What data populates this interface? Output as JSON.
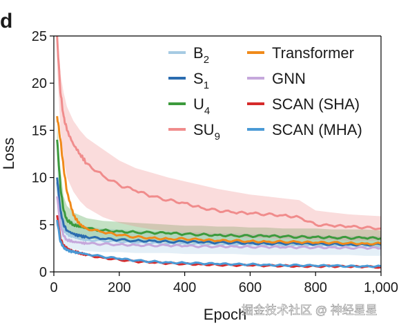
{
  "panel_label": "d",
  "watermark": "掘金技术社区 @ 神经星星",
  "chart_data": {
    "type": "line",
    "xlabel": "Epoch",
    "ylabel": "Loss",
    "xlim": [
      0,
      1000
    ],
    "ylim": [
      0,
      25
    ],
    "xticks": [
      0,
      200,
      400,
      600,
      800,
      1000
    ],
    "xtick_labels": [
      "0",
      "200",
      "400",
      "600",
      "800",
      "1,000"
    ],
    "yticks": [
      0,
      5,
      10,
      15,
      20,
      25
    ],
    "ytick_labels": [
      "0",
      "5",
      "10",
      "15",
      "20",
      "25"
    ],
    "grid": false,
    "legend_position": "top-right",
    "x": [
      10,
      20,
      30,
      40,
      60,
      80,
      100,
      150,
      200,
      250,
      300,
      350,
      400,
      450,
      500,
      550,
      600,
      650,
      700,
      750,
      800,
      850,
      900,
      950,
      1000
    ],
    "series": [
      {
        "name": "B",
        "sub": "2",
        "color": "#a6cbe3",
        "values": [
          9.5,
          6.0,
          4.5,
          4.0,
          3.7,
          3.5,
          3.4,
          3.3,
          3.2,
          3.1,
          3.05,
          3.0,
          3.0,
          2.95,
          2.9,
          2.9,
          2.85,
          2.85,
          2.8,
          2.8,
          2.8,
          2.75,
          2.75,
          2.7,
          2.7
        ],
        "upper": [
          11.5,
          8.0,
          6.5,
          5.8,
          5.3,
          5.0,
          4.8,
          4.6,
          4.5,
          4.4,
          4.3,
          4.3,
          4.2,
          4.2,
          4.1,
          4.1,
          4.0,
          4.0,
          3.9,
          3.9,
          3.9,
          3.8,
          3.8,
          3.8,
          3.8
        ],
        "lower": [
          7.5,
          4.0,
          3.0,
          2.6,
          2.4,
          2.3,
          2.2,
          2.1,
          2.1,
          2.0,
          2.0,
          2.0,
          1.9,
          1.9,
          1.9,
          1.9,
          1.8,
          1.8,
          1.8,
          1.8,
          1.8,
          1.8,
          1.8,
          1.7,
          1.7
        ]
      },
      {
        "name": "S",
        "sub": "1",
        "color": "#2b6cb0",
        "values": [
          10.0,
          6.5,
          5.0,
          4.4,
          4.0,
          3.8,
          3.7,
          3.5,
          3.4,
          3.3,
          3.3,
          3.2,
          3.2,
          3.15,
          3.1,
          3.1,
          3.05,
          3.0,
          3.0,
          3.0,
          2.95,
          2.95,
          2.9,
          2.9,
          2.9
        ],
        "upper": null,
        "lower": null
      },
      {
        "name": "U",
        "sub": "4",
        "color": "#3c9a3c",
        "values": [
          14.0,
          9.0,
          6.5,
          5.5,
          5.0,
          4.8,
          4.6,
          4.4,
          4.3,
          4.2,
          4.15,
          4.1,
          4.0,
          3.95,
          3.9,
          3.85,
          3.8,
          3.8,
          3.75,
          3.7,
          3.7,
          3.65,
          3.6,
          3.6,
          3.55
        ],
        "upper": [
          15.5,
          11.0,
          8.0,
          7.0,
          6.3,
          6.0,
          5.7,
          5.4,
          5.3,
          5.2,
          5.1,
          5.0,
          4.9,
          4.9,
          4.8,
          4.8,
          4.7,
          4.7,
          4.6,
          4.6,
          4.6,
          4.5,
          4.5,
          4.5,
          4.4
        ],
        "lower": [
          12.5,
          7.0,
          5.0,
          4.2,
          3.8,
          3.6,
          3.5,
          3.4,
          3.3,
          3.2,
          3.2,
          3.1,
          3.1,
          3.0,
          3.0,
          3.0,
          2.9,
          2.9,
          2.9,
          2.8,
          2.8,
          2.8,
          2.8,
          2.8,
          2.7
        ]
      },
      {
        "name": "SU",
        "sub": "9",
        "color": "#f08c8c",
        "values": [
          25.0,
          19.0,
          16.5,
          15.0,
          13.5,
          12.5,
          11.5,
          10.2,
          9.2,
          8.6,
          8.0,
          7.6,
          7.3,
          6.8,
          6.5,
          6.3,
          6.2,
          6.1,
          6.0,
          5.8,
          5.0,
          4.9,
          4.8,
          4.7,
          4.6
        ],
        "upper": [
          26.0,
          21.0,
          19.0,
          17.5,
          16.0,
          15.0,
          14.2,
          13.0,
          11.8,
          11.0,
          10.5,
          10.0,
          9.6,
          9.2,
          8.8,
          8.5,
          8.2,
          8.0,
          7.8,
          7.6,
          6.5,
          6.3,
          6.1,
          6.0,
          5.9
        ],
        "lower": [
          22.0,
          15.0,
          12.0,
          10.0,
          8.5,
          7.5,
          6.8,
          5.8,
          5.2,
          4.8,
          4.5,
          4.3,
          4.1,
          3.9,
          3.8,
          3.7,
          3.6,
          3.6,
          3.5,
          3.5,
          3.4,
          3.4,
          3.3,
          3.3,
          3.3
        ]
      },
      {
        "name": "Transformer",
        "sub": "",
        "color": "#f08a1a",
        "values": [
          16.5,
          14.0,
          11.0,
          8.5,
          6.0,
          5.0,
          4.6,
          4.2,
          3.9,
          3.7,
          3.6,
          3.5,
          3.5,
          3.4,
          3.3,
          3.3,
          3.25,
          3.2,
          3.2,
          3.15,
          3.1,
          3.1,
          3.05,
          3.0,
          3.0
        ],
        "upper": null,
        "lower": null
      },
      {
        "name": "GNN",
        "sub": "",
        "color": "#c6a8dc",
        "values": [
          8.0,
          5.0,
          3.8,
          3.4,
          3.2,
          3.1,
          3.0,
          2.95,
          2.9,
          2.85,
          2.8,
          2.8,
          2.75,
          2.7,
          2.7,
          2.7,
          2.65,
          2.65,
          2.6,
          2.6,
          2.6,
          2.6,
          2.55,
          2.55,
          2.5
        ],
        "upper": null,
        "lower": null
      },
      {
        "name": "SCAN (SHA)",
        "sub": "",
        "color": "#d62a2a",
        "values": [
          6.0,
          3.5,
          2.8,
          2.5,
          2.2,
          2.0,
          1.8,
          1.5,
          1.3,
          1.1,
          1.0,
          0.9,
          0.85,
          0.8,
          0.75,
          0.7,
          0.7,
          0.65,
          0.65,
          0.6,
          0.6,
          0.6,
          0.55,
          0.55,
          0.5
        ],
        "upper": null,
        "lower": null
      },
      {
        "name": "SCAN (MHA)",
        "sub": "",
        "color": "#4a9ad6",
        "values": [
          5.5,
          3.2,
          2.6,
          2.3,
          2.1,
          2.0,
          1.9,
          1.6,
          1.4,
          1.2,
          1.1,
          1.0,
          0.95,
          0.9,
          0.85,
          0.8,
          0.8,
          0.75,
          0.7,
          0.7,
          0.65,
          0.65,
          0.6,
          0.6,
          0.6
        ],
        "upper": null,
        "lower": null
      }
    ]
  }
}
